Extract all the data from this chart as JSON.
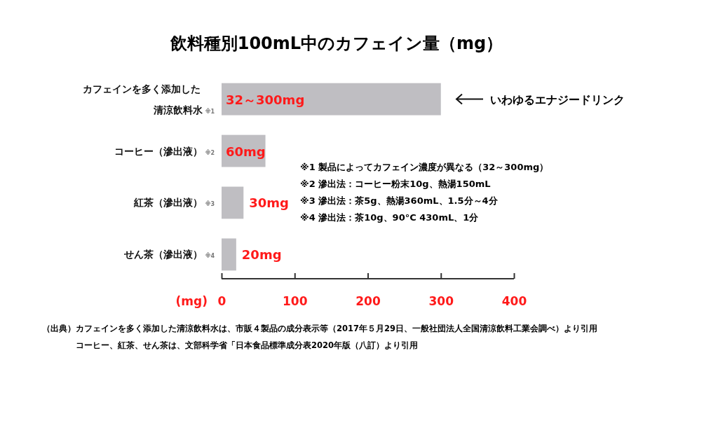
{
  "chart_data": {
    "type": "bar",
    "orientation": "horizontal",
    "title": "飲料種別100mL中のカフェイン量（mg）",
    "xlabel": "(mg)",
    "categories": [
      "カフェインを多く添加した清涼飲料水※1",
      "コーヒー（滲出液）※2",
      "紅茶（滲出液）※3",
      "せん茶（滲出液）※4"
    ],
    "values": [
      300,
      60,
      30,
      20
    ],
    "color": "#bfbec2",
    "value_labels": [
      "32～300mg",
      "60mg",
      "30mg",
      "20mg"
    ],
    "xlim": [
      0,
      400
    ],
    "xticks": [
      0,
      100,
      200,
      300,
      400
    ],
    "grid": false,
    "annotations": [
      "いわゆるエナジードリンク",
      "※1 製品によってカフェイン濃度が異なる（32～300mg）",
      "※2 滲出法：コーヒー粉末10g、熱湯150mL",
      "※3 滲出法：茶5g、熱湯360mL、1.5分～4分",
      "※4 滲出法：茶10g、90°C 430mL、1分",
      "（出典）カフェインを多く添加した清涼飲料水は、市販４製品の成分表示等（2017年５月29日、一般社団法人全国清涼飲料工業会調べ）より引用",
      "コーヒー、紅茶、せん茶は、文部科学省「日本食品標準成分表2020年版（八訂）より引用"
    ]
  }
}
